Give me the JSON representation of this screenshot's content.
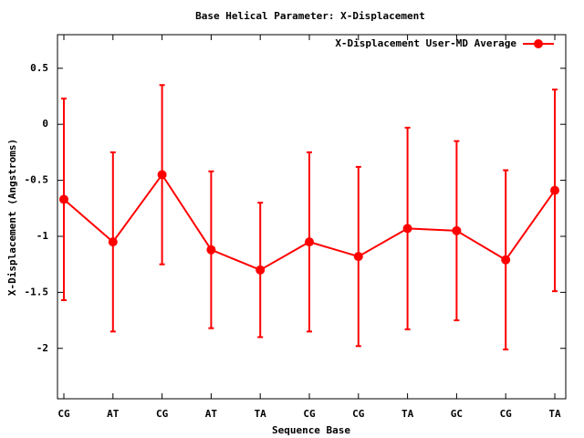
{
  "chart_data": {
    "type": "line-errorbar",
    "title": "Base  Helical Parameter: X-Displacement",
    "x_label": "Sequence Base",
    "y_label": "X-Displacement (Angstroms)",
    "categories": [
      "CG",
      "AT",
      "CG",
      "AT",
      "TA",
      "CG",
      "CG",
      "TA",
      "GC",
      "CG",
      "TA"
    ],
    "series": [
      {
        "name": "X-Displacement User-MD Average",
        "color": "#ff0000",
        "values": [
          -0.67,
          -1.05,
          -0.45,
          -1.12,
          -1.3,
          -1.05,
          -1.18,
          -0.93,
          -0.95,
          -1.21,
          -0.59
        ],
        "errors": [
          0.9,
          0.8,
          0.8,
          0.7,
          0.6,
          0.8,
          0.8,
          0.9,
          0.8,
          0.8,
          0.9
        ]
      }
    ],
    "ylim": [
      -2.45,
      0.8
    ],
    "yticks": [
      0.5,
      0,
      -0.5,
      -1,
      -1.5,
      -2
    ],
    "legend": "top-right"
  }
}
